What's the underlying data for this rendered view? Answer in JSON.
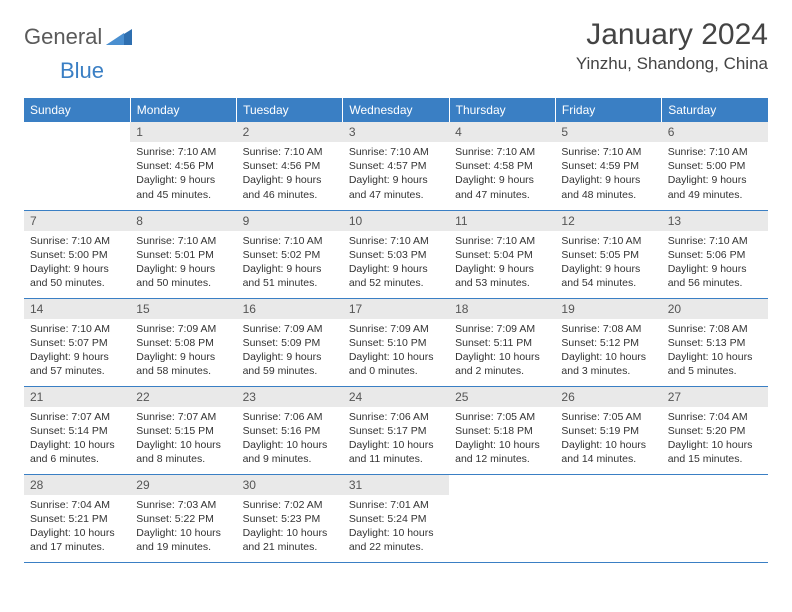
{
  "logo": {
    "general": "General",
    "blue": "Blue"
  },
  "title": "January 2024",
  "location": "Yinzhu, Shandong, China",
  "colors": {
    "header_bg": "#3a7fc4",
    "header_text": "#ffffff",
    "daynum_bg": "#e9e9e9",
    "border": "#3a7fc4",
    "text": "#333333"
  },
  "weekdays": [
    "Sunday",
    "Monday",
    "Tuesday",
    "Wednesday",
    "Thursday",
    "Friday",
    "Saturday"
  ],
  "weeks": [
    [
      null,
      {
        "n": "1",
        "sr": "7:10 AM",
        "ss": "4:56 PM",
        "dl": "9 hours and 45 minutes."
      },
      {
        "n": "2",
        "sr": "7:10 AM",
        "ss": "4:56 PM",
        "dl": "9 hours and 46 minutes."
      },
      {
        "n": "3",
        "sr": "7:10 AM",
        "ss": "4:57 PM",
        "dl": "9 hours and 47 minutes."
      },
      {
        "n": "4",
        "sr": "7:10 AM",
        "ss": "4:58 PM",
        "dl": "9 hours and 47 minutes."
      },
      {
        "n": "5",
        "sr": "7:10 AM",
        "ss": "4:59 PM",
        "dl": "9 hours and 48 minutes."
      },
      {
        "n": "6",
        "sr": "7:10 AM",
        "ss": "5:00 PM",
        "dl": "9 hours and 49 minutes."
      }
    ],
    [
      {
        "n": "7",
        "sr": "7:10 AM",
        "ss": "5:00 PM",
        "dl": "9 hours and 50 minutes."
      },
      {
        "n": "8",
        "sr": "7:10 AM",
        "ss": "5:01 PM",
        "dl": "9 hours and 50 minutes."
      },
      {
        "n": "9",
        "sr": "7:10 AM",
        "ss": "5:02 PM",
        "dl": "9 hours and 51 minutes."
      },
      {
        "n": "10",
        "sr": "7:10 AM",
        "ss": "5:03 PM",
        "dl": "9 hours and 52 minutes."
      },
      {
        "n": "11",
        "sr": "7:10 AM",
        "ss": "5:04 PM",
        "dl": "9 hours and 53 minutes."
      },
      {
        "n": "12",
        "sr": "7:10 AM",
        "ss": "5:05 PM",
        "dl": "9 hours and 54 minutes."
      },
      {
        "n": "13",
        "sr": "7:10 AM",
        "ss": "5:06 PM",
        "dl": "9 hours and 56 minutes."
      }
    ],
    [
      {
        "n": "14",
        "sr": "7:10 AM",
        "ss": "5:07 PM",
        "dl": "9 hours and 57 minutes."
      },
      {
        "n": "15",
        "sr": "7:09 AM",
        "ss": "5:08 PM",
        "dl": "9 hours and 58 minutes."
      },
      {
        "n": "16",
        "sr": "7:09 AM",
        "ss": "5:09 PM",
        "dl": "9 hours and 59 minutes."
      },
      {
        "n": "17",
        "sr": "7:09 AM",
        "ss": "5:10 PM",
        "dl": "10 hours and 0 minutes."
      },
      {
        "n": "18",
        "sr": "7:09 AM",
        "ss": "5:11 PM",
        "dl": "10 hours and 2 minutes."
      },
      {
        "n": "19",
        "sr": "7:08 AM",
        "ss": "5:12 PM",
        "dl": "10 hours and 3 minutes."
      },
      {
        "n": "20",
        "sr": "7:08 AM",
        "ss": "5:13 PM",
        "dl": "10 hours and 5 minutes."
      }
    ],
    [
      {
        "n": "21",
        "sr": "7:07 AM",
        "ss": "5:14 PM",
        "dl": "10 hours and 6 minutes."
      },
      {
        "n": "22",
        "sr": "7:07 AM",
        "ss": "5:15 PM",
        "dl": "10 hours and 8 minutes."
      },
      {
        "n": "23",
        "sr": "7:06 AM",
        "ss": "5:16 PM",
        "dl": "10 hours and 9 minutes."
      },
      {
        "n": "24",
        "sr": "7:06 AM",
        "ss": "5:17 PM",
        "dl": "10 hours and 11 minutes."
      },
      {
        "n": "25",
        "sr": "7:05 AM",
        "ss": "5:18 PM",
        "dl": "10 hours and 12 minutes."
      },
      {
        "n": "26",
        "sr": "7:05 AM",
        "ss": "5:19 PM",
        "dl": "10 hours and 14 minutes."
      },
      {
        "n": "27",
        "sr": "7:04 AM",
        "ss": "5:20 PM",
        "dl": "10 hours and 15 minutes."
      }
    ],
    [
      {
        "n": "28",
        "sr": "7:04 AM",
        "ss": "5:21 PM",
        "dl": "10 hours and 17 minutes."
      },
      {
        "n": "29",
        "sr": "7:03 AM",
        "ss": "5:22 PM",
        "dl": "10 hours and 19 minutes."
      },
      {
        "n": "30",
        "sr": "7:02 AM",
        "ss": "5:23 PM",
        "dl": "10 hours and 21 minutes."
      },
      {
        "n": "31",
        "sr": "7:01 AM",
        "ss": "5:24 PM",
        "dl": "10 hours and 22 minutes."
      },
      null,
      null,
      null
    ]
  ],
  "labels": {
    "sunrise": "Sunrise: ",
    "sunset": "Sunset: ",
    "daylight": "Daylight: "
  }
}
